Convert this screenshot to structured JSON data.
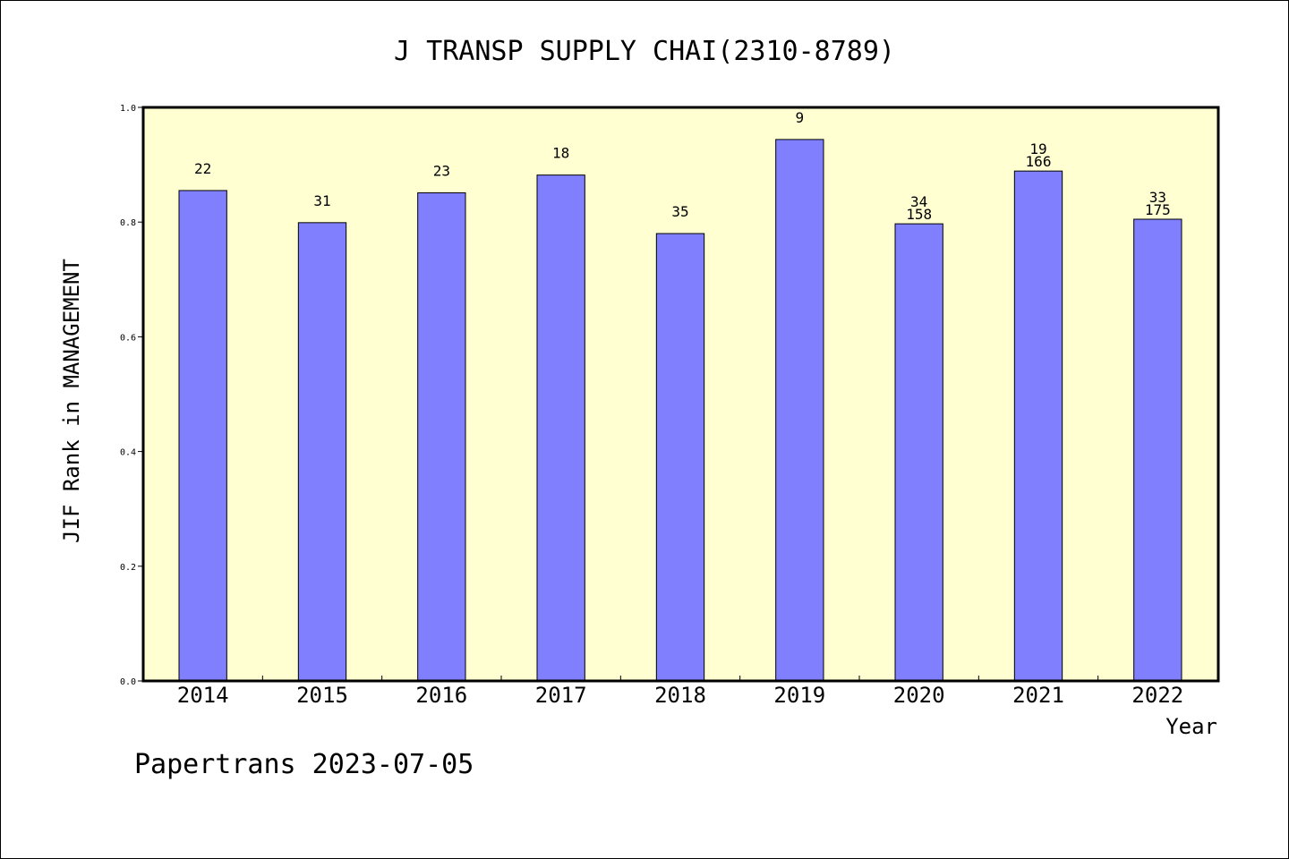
{
  "chart_data": {
    "type": "bar",
    "title": "J TRANSP SUPPLY CHAI(2310-8789)",
    "xlabel": "Year",
    "ylabel": "JIF Rank in MANAGEMENT",
    "ylim": [
      0,
      1.0
    ],
    "yticks": [
      "0.0",
      "0.2",
      "0.4",
      "0.6",
      "0.8",
      "1.0"
    ],
    "categories": [
      "2014",
      "2015",
      "2016",
      "2017",
      "2018",
      "2019",
      "2020",
      "2021",
      "2022"
    ],
    "values": [
      0.855,
      0.799,
      0.851,
      0.882,
      0.78,
      0.944,
      0.797,
      0.889,
      0.805
    ],
    "labels": [
      [
        "22"
      ],
      [
        "31"
      ],
      [
        "23"
      ],
      [
        "18"
      ],
      [
        "35"
      ],
      [
        "9"
      ],
      [
        "34",
        "158"
      ],
      [
        "19",
        "166"
      ],
      [
        "33",
        "175"
      ]
    ],
    "grid": false,
    "legend": "none",
    "colors": {
      "bar": "#8080ff",
      "plot_bg": "#ffffd2",
      "axis": "#000000"
    }
  },
  "footer": "Papertrans 2023-07-05"
}
